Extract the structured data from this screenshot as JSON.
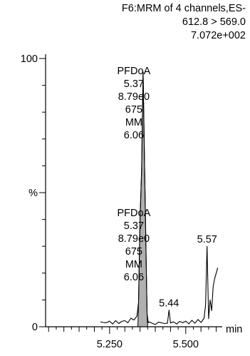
{
  "header": {
    "line1": "F6:MRM of 4 channels,ES-",
    "line2": "612.8 > 569.0",
    "line3": "7.072e+002"
  },
  "chart_data": {
    "type": "line",
    "xlabel": "min",
    "ylabel": "%",
    "xlim": [
      5.04,
      5.615
    ],
    "ylim": [
      0,
      100
    ],
    "y_ticks_labeled": [
      {
        "value": 100,
        "label": "100"
      },
      {
        "value": 50,
        "label": "%"
      },
      {
        "value": 0,
        "label": "0"
      }
    ],
    "x_ticks_labeled": [
      {
        "value": 5.25,
        "label": "5.250"
      },
      {
        "value": 5.5,
        "label": "5.500"
      }
    ],
    "colors": {
      "trace": "#000000",
      "peak_fill": "#b0b0b0"
    },
    "series": [
      {
        "x": [
          5.22,
          5.23,
          5.24,
          5.25,
          5.26,
          5.27,
          5.28,
          5.29,
          5.3,
          5.31,
          5.32,
          5.33,
          5.34,
          5.345,
          5.35,
          5.355,
          5.36,
          5.365,
          5.37,
          5.373,
          5.377,
          5.38,
          5.39,
          5.4,
          5.41,
          5.42,
          5.43,
          5.44,
          5.445,
          5.45,
          5.46,
          5.47,
          5.48,
          5.49,
          5.5,
          5.51,
          5.52,
          5.53,
          5.54,
          5.55,
          5.56,
          5.565,
          5.57,
          5.575,
          5.58,
          5.585,
          5.59,
          5.595,
          5.6,
          5.605
        ],
        "y": [
          1.8,
          1.6,
          1.5,
          2.1,
          1.0,
          2.3,
          1.2,
          2.0,
          2.3,
          1.5,
          3.2,
          2.5,
          4.0,
          9.0,
          40.0,
          58.0,
          95.0,
          60.0,
          25.0,
          5.0,
          1.5,
          1.8,
          1.3,
          0.8,
          1.7,
          1.5,
          1.2,
          1.3,
          6.2,
          1.4,
          1.8,
          1.0,
          2.0,
          1.5,
          2.1,
          1.1,
          2.4,
          1.3,
          2.7,
          1.6,
          3.2,
          8.0,
          30.0,
          3.0,
          10.0,
          6.0,
          15.0,
          18.0,
          20.0,
          22.0
        ]
      }
    ],
    "shaded_peak": {
      "x_from": 5.343,
      "x_to": 5.375
    },
    "annotations": [
      {
        "x": 5.36,
        "y": 95.0,
        "lines": [
          "PFDoA",
          "5.37",
          "8.79e0",
          "675",
          "MM",
          "6.06"
        ]
      },
      {
        "x": 5.36,
        "y": 42.0,
        "lines": [
          "PFDoA",
          "5.37",
          "8.79e0",
          "675",
          "MM",
          "6.06"
        ]
      },
      {
        "x": 5.57,
        "y": 30.0,
        "lines": [
          "5.57"
        ]
      },
      {
        "x": 5.445,
        "y": 6.2,
        "lines": [
          "5.44"
        ]
      }
    ]
  }
}
